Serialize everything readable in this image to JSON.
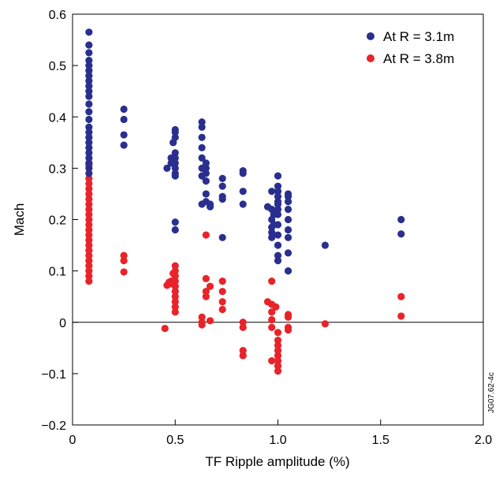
{
  "figure_id": "JG07.62-4c",
  "chart_data": {
    "type": "scatter",
    "xlabel": "TF Ripple amplitude (%)",
    "ylabel": "Mach",
    "xlim": [
      0,
      2.0
    ],
    "ylim": [
      -0.2,
      0.6
    ],
    "x_ticks": [
      "0",
      "0.5",
      "1.0",
      "1.5",
      "2.0"
    ],
    "y_ticks": [
      "−0.2",
      "−0.1",
      "0",
      "0.1",
      "0.2",
      "0.3",
      "0.4",
      "0.5",
      "0.6"
    ],
    "zero_line": true,
    "legend_position": "top-right",
    "series": [
      {
        "name": "At R = 3.1m",
        "color": "#2a2f8f",
        "points": [
          [
            0.08,
            0.565
          ],
          [
            0.08,
            0.54
          ],
          [
            0.08,
            0.525
          ],
          [
            0.08,
            0.51
          ],
          [
            0.08,
            0.5
          ],
          [
            0.08,
            0.49
          ],
          [
            0.08,
            0.48
          ],
          [
            0.08,
            0.47
          ],
          [
            0.08,
            0.46
          ],
          [
            0.08,
            0.45
          ],
          [
            0.08,
            0.44
          ],
          [
            0.08,
            0.425
          ],
          [
            0.08,
            0.41
          ],
          [
            0.08,
            0.395
          ],
          [
            0.08,
            0.38
          ],
          [
            0.08,
            0.37
          ],
          [
            0.08,
            0.36
          ],
          [
            0.08,
            0.35
          ],
          [
            0.08,
            0.34
          ],
          [
            0.08,
            0.33
          ],
          [
            0.08,
            0.32
          ],
          [
            0.08,
            0.31
          ],
          [
            0.08,
            0.3
          ],
          [
            0.08,
            0.29
          ],
          [
            0.25,
            0.415
          ],
          [
            0.25,
            0.395
          ],
          [
            0.25,
            0.365
          ],
          [
            0.25,
            0.345
          ],
          [
            0.46,
            0.3
          ],
          [
            0.48,
            0.32
          ],
          [
            0.48,
            0.31
          ],
          [
            0.49,
            0.35
          ],
          [
            0.5,
            0.37
          ],
          [
            0.5,
            0.375
          ],
          [
            0.5,
            0.36
          ],
          [
            0.5,
            0.33
          ],
          [
            0.5,
            0.32
          ],
          [
            0.5,
            0.31
          ],
          [
            0.5,
            0.3
          ],
          [
            0.5,
            0.29
          ],
          [
            0.5,
            0.285
          ],
          [
            0.5,
            0.195
          ],
          [
            0.5,
            0.18
          ],
          [
            0.63,
            0.39
          ],
          [
            0.63,
            0.38
          ],
          [
            0.63,
            0.36
          ],
          [
            0.63,
            0.34
          ],
          [
            0.63,
            0.32
          ],
          [
            0.63,
            0.3
          ],
          [
            0.63,
            0.285
          ],
          [
            0.63,
            0.23
          ],
          [
            0.65,
            0.31
          ],
          [
            0.65,
            0.3
          ],
          [
            0.65,
            0.29
          ],
          [
            0.65,
            0.275
          ],
          [
            0.65,
            0.25
          ],
          [
            0.65,
            0.235
          ],
          [
            0.67,
            0.23
          ],
          [
            0.67,
            0.225
          ],
          [
            0.73,
            0.28
          ],
          [
            0.73,
            0.265
          ],
          [
            0.73,
            0.245
          ],
          [
            0.73,
            0.24
          ],
          [
            0.73,
            0.165
          ],
          [
            0.83,
            0.295
          ],
          [
            0.83,
            0.29
          ],
          [
            0.83,
            0.255
          ],
          [
            0.83,
            0.23
          ],
          [
            0.95,
            0.225
          ],
          [
            0.97,
            0.255
          ],
          [
            0.97,
            0.22
          ],
          [
            0.97,
            0.2
          ],
          [
            0.97,
            0.185
          ],
          [
            0.97,
            0.175
          ],
          [
            0.97,
            0.165
          ],
          [
            0.98,
            0.21
          ],
          [
            0.98,
            0.19
          ],
          [
            1.0,
            0.285
          ],
          [
            1.0,
            0.265
          ],
          [
            1.0,
            0.255
          ],
          [
            1.0,
            0.245
          ],
          [
            1.0,
            0.235
          ],
          [
            1.0,
            0.23
          ],
          [
            1.0,
            0.22
          ],
          [
            1.0,
            0.21
          ],
          [
            1.0,
            0.19
          ],
          [
            1.0,
            0.17
          ],
          [
            1.0,
            0.15
          ],
          [
            1.0,
            0.13
          ],
          [
            1.0,
            0.12
          ],
          [
            1.05,
            0.25
          ],
          [
            1.05,
            0.245
          ],
          [
            1.05,
            0.235
          ],
          [
            1.05,
            0.22
          ],
          [
            1.05,
            0.2
          ],
          [
            1.05,
            0.18
          ],
          [
            1.05,
            0.165
          ],
          [
            1.05,
            0.135
          ],
          [
            1.05,
            0.1
          ],
          [
            1.23,
            0.15
          ],
          [
            1.6,
            0.2
          ],
          [
            1.6,
            0.172
          ]
        ]
      },
      {
        "name": "At R = 3.8m",
        "color": "#e8232a",
        "points": [
          [
            0.08,
            0.31
          ],
          [
            0.08,
            0.305
          ],
          [
            0.08,
            0.28
          ],
          [
            0.08,
            0.27
          ],
          [
            0.08,
            0.26
          ],
          [
            0.08,
            0.25
          ],
          [
            0.08,
            0.24
          ],
          [
            0.08,
            0.23
          ],
          [
            0.08,
            0.22
          ],
          [
            0.08,
            0.21
          ],
          [
            0.08,
            0.2
          ],
          [
            0.08,
            0.19
          ],
          [
            0.08,
            0.18
          ],
          [
            0.08,
            0.17
          ],
          [
            0.08,
            0.16
          ],
          [
            0.08,
            0.15
          ],
          [
            0.08,
            0.14
          ],
          [
            0.08,
            0.13
          ],
          [
            0.08,
            0.12
          ],
          [
            0.08,
            0.11
          ],
          [
            0.08,
            0.1
          ],
          [
            0.08,
            0.09
          ],
          [
            0.08,
            0.08
          ],
          [
            0.25,
            0.13
          ],
          [
            0.25,
            0.12
          ],
          [
            0.25,
            0.098
          ],
          [
            0.45,
            -0.012
          ],
          [
            0.46,
            0.072
          ],
          [
            0.47,
            0.078
          ],
          [
            0.48,
            0.075
          ],
          [
            0.48,
            0.08
          ],
          [
            0.49,
            0.095
          ],
          [
            0.5,
            0.11
          ],
          [
            0.5,
            0.1
          ],
          [
            0.5,
            0.09
          ],
          [
            0.5,
            0.08
          ],
          [
            0.5,
            0.07
          ],
          [
            0.5,
            0.06
          ],
          [
            0.5,
            0.05
          ],
          [
            0.5,
            0.04
          ],
          [
            0.5,
            0.03
          ],
          [
            0.5,
            0.02
          ],
          [
            0.63,
            0.01
          ],
          [
            0.63,
            0.0
          ],
          [
            0.63,
            -0.005
          ],
          [
            0.65,
            0.17
          ],
          [
            0.65,
            0.085
          ],
          [
            0.65,
            0.06
          ],
          [
            0.65,
            0.05
          ],
          [
            0.67,
            0.07
          ],
          [
            0.67,
            0.003
          ],
          [
            0.73,
            0.08
          ],
          [
            0.73,
            0.06
          ],
          [
            0.73,
            0.04
          ],
          [
            0.73,
            0.025
          ],
          [
            0.83,
            0.0
          ],
          [
            0.83,
            -0.01
          ],
          [
            0.83,
            -0.055
          ],
          [
            0.83,
            -0.065
          ],
          [
            0.95,
            0.04
          ],
          [
            0.97,
            0.08
          ],
          [
            0.97,
            0.035
          ],
          [
            0.97,
            0.02
          ],
          [
            0.97,
            0.005
          ],
          [
            0.97,
            -0.01
          ],
          [
            0.97,
            -0.075
          ],
          [
            0.99,
            0.03
          ],
          [
            1.0,
            -0.02
          ],
          [
            1.0,
            -0.035
          ],
          [
            1.0,
            -0.045
          ],
          [
            1.0,
            -0.055
          ],
          [
            1.0,
            -0.065
          ],
          [
            1.0,
            -0.075
          ],
          [
            1.0,
            -0.085
          ],
          [
            1.0,
            -0.095
          ],
          [
            1.05,
            0.015
          ],
          [
            1.05,
            0.01
          ],
          [
            1.05,
            -0.01
          ],
          [
            1.05,
            -0.015
          ],
          [
            1.23,
            -0.003
          ],
          [
            1.6,
            0.05
          ],
          [
            1.6,
            0.012
          ]
        ]
      }
    ]
  }
}
